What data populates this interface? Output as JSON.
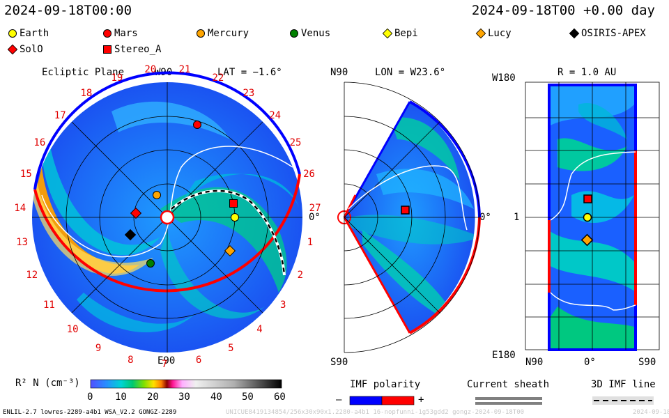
{
  "header": {
    "left_time": "2024-09-18T00:00",
    "right_time": "2024-09-18T00 +0.00 day"
  },
  "legend": [
    {
      "name": "Earth",
      "shape": "circle",
      "color": "#ffff00"
    },
    {
      "name": "Mars",
      "shape": "circle",
      "color": "#ff0000"
    },
    {
      "name": "Mercury",
      "shape": "circle",
      "color": "#ffa500"
    },
    {
      "name": "Venus",
      "shape": "circle",
      "color": "#008000"
    },
    {
      "name": "Bepi",
      "shape": "diamond",
      "color": "#ffff00"
    },
    {
      "name": "Lucy",
      "shape": "diamond",
      "color": "#ffa500"
    },
    {
      "name": "OSIRIS-APEX",
      "shape": "diamond",
      "color": "#000000"
    },
    {
      "name": "SolO",
      "shape": "diamond",
      "color": "#ff0000"
    },
    {
      "name": "Stereo_A",
      "shape": "square",
      "color": "#ff0000"
    }
  ],
  "panels": {
    "ecliptic": {
      "title": "Ecliptic Plane",
      "top": "W90",
      "bottom": "E90",
      "right": "0°",
      "lat_label": "LAT = −1.6°",
      "carrington": [
        "1",
        "2",
        "3",
        "4",
        "5",
        "6",
        "7",
        "8",
        "9",
        "10",
        "11",
        "12",
        "13",
        "14",
        "15",
        "16",
        "17",
        "18",
        "19",
        "20",
        "21",
        "22",
        "23",
        "24",
        "25",
        "26",
        "27"
      ]
    },
    "meridional": {
      "top": "N90",
      "bottom": "S90",
      "right": "0°",
      "lon_label": "LON = W23.6°"
    },
    "latlon": {
      "title": "R = 1.0 AU",
      "left_top": "W180",
      "left_mid": "1",
      "left_bottom": "E180",
      "x_left": "N90",
      "x_mid": "0°",
      "x_right": "S90"
    }
  },
  "colorbar": {
    "label": "R² N (cm⁻³)",
    "ticks": [
      "0",
      "10",
      "20",
      "30",
      "40",
      "50",
      "60"
    ]
  },
  "keys": {
    "imf_title": "IMF polarity",
    "imf_minus": "–",
    "imf_plus": "+",
    "sheath_title": "Current sheath",
    "line_title": "3D IMF line"
  },
  "footer": {
    "model": "ENLIL-2.7 lowres-2289-a4b1 WSA_V2.2 GONGZ-2289",
    "ghost": "UNICUE8419134854/256x30x90x1.2280-a4b1 16-nopfunni-1g53gdd2 gongz-2024-09-18T00",
    "ghost_right": "2024-09-18"
  },
  "chart_data": {
    "type": "heatmap",
    "quantity": "R² N (cm⁻³)",
    "range": [
      0,
      60
    ],
    "objects": [
      {
        "name": "Earth",
        "lon_deg": 0
      },
      {
        "name": "Stereo_A",
        "lon_deg": 12
      },
      {
        "name": "Mars",
        "lon_deg": 72
      },
      {
        "name": "Mercury",
        "lon_deg": 115
      },
      {
        "name": "SolO",
        "lon_deg": 172
      },
      {
        "name": "OSIRIS-APEX",
        "lon_deg": 205
      },
      {
        "name": "Venus",
        "lon_deg": 250
      },
      {
        "name": "Lucy",
        "lon_deg": 332
      }
    ]
  }
}
